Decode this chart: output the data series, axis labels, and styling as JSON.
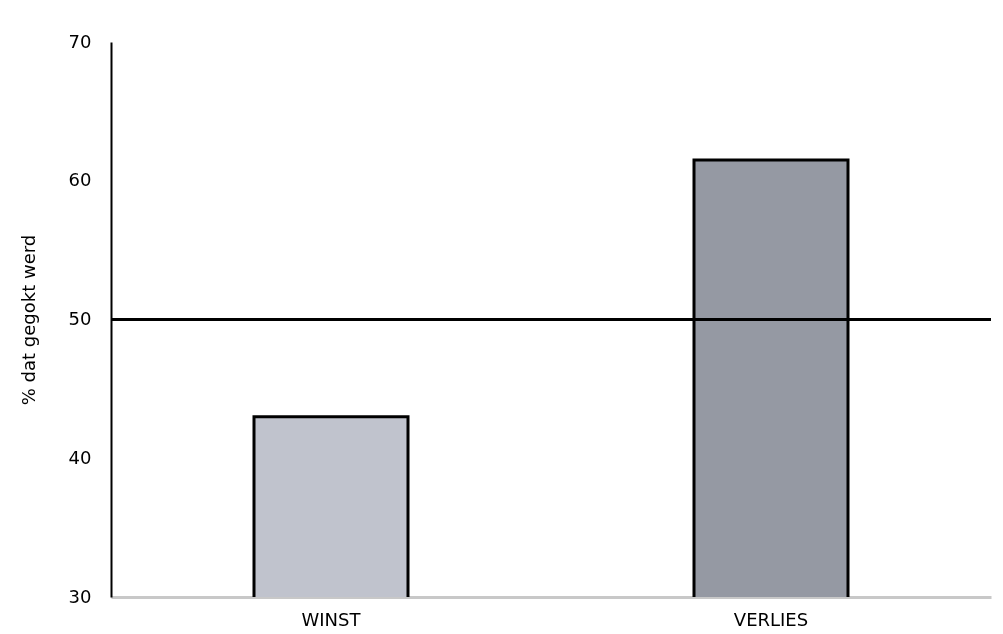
{
  "chart_data": {
    "type": "bar",
    "ylabel": "% dat gegokt werd",
    "categories": [
      "WINST",
      "VERLIES"
    ],
    "values": [
      43,
      61.5
    ],
    "colors": [
      "#c0c3cd",
      "#9599a3"
    ],
    "ylim": [
      30,
      70
    ],
    "yticks": [
      30,
      40,
      50,
      60,
      70
    ],
    "grid": false,
    "ref_lines": [
      {
        "axis": "y",
        "value": 50,
        "color": "#000000"
      }
    ]
  }
}
